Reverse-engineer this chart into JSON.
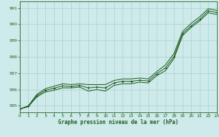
{
  "title": "Graphe pression niveau de la mer (hPa)",
  "background_color": "#ceeaea",
  "grid_color": "#aacfcf",
  "line_color": "#1e5c1e",
  "xlim": [
    0,
    23
  ],
  "ylim": [
    984.6,
    991.4
  ],
  "yticks": [
    985,
    986,
    987,
    988,
    989,
    990,
    991
  ],
  "xticks": [
    0,
    1,
    2,
    3,
    4,
    5,
    6,
    7,
    8,
    9,
    10,
    11,
    12,
    13,
    14,
    15,
    16,
    17,
    18,
    19,
    20,
    21,
    22,
    23
  ],
  "y_low": [
    984.8,
    984.95,
    985.55,
    985.85,
    985.95,
    986.1,
    986.1,
    986.15,
    985.9,
    986.0,
    985.9,
    986.25,
    986.35,
    986.35,
    986.45,
    986.4,
    986.85,
    987.15,
    987.9,
    989.3,
    989.8,
    990.2,
    990.7,
    990.6
  ],
  "y_high": [
    984.8,
    985.0,
    985.7,
    986.05,
    986.2,
    986.35,
    986.3,
    986.35,
    986.3,
    986.3,
    986.3,
    986.55,
    986.65,
    986.65,
    986.7,
    986.65,
    987.1,
    987.5,
    988.2,
    989.55,
    990.05,
    990.45,
    990.95,
    990.85
  ],
  "y_mid": [
    984.8,
    984.97,
    985.62,
    985.95,
    986.08,
    986.22,
    986.18,
    986.25,
    986.1,
    986.15,
    986.1,
    986.4,
    986.5,
    986.5,
    986.57,
    986.52,
    986.97,
    987.32,
    988.02,
    989.42,
    989.9,
    990.3,
    990.82,
    990.72
  ],
  "tick_fontsize": 4.5,
  "label_fontsize": 5.5
}
